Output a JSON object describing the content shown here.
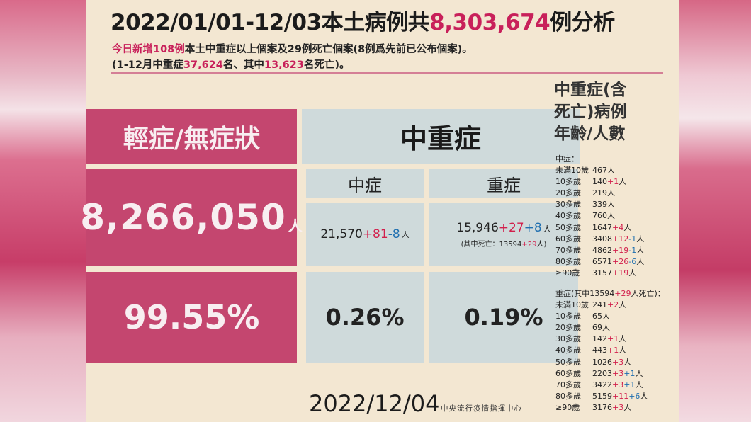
{
  "colors": {
    "pink": "#c4466f",
    "gray": "#cfdadb",
    "highlight": "#c8205a",
    "increase": "#d21f4c",
    "decrease": "#1f6fb0"
  },
  "title": {
    "prefix": "2022/01/01-12/03本土病例共",
    "count": "8,303,674",
    "suffix": "例分析"
  },
  "subtitle1": {
    "p1": "今日新增108例",
    "p2": "本土中重症以上個案及29例死亡個案(8例爲先前已公布個案)。"
  },
  "subtitle2": {
    "p1": "(1-12月中重症",
    "n1": "37,624",
    "p2": "名、其中",
    "n2": "13,623",
    "p3": "名死亡)。"
  },
  "table": {
    "mild_header": "輕症/無症狀",
    "severe_header": "中重症",
    "mild_count": "8,266,050",
    "mild_unit": "人",
    "mild_pct": "99.55%",
    "moderate_label": "中症",
    "severe_label": "重症",
    "moderate_base": "21,570",
    "moderate_plus": "+81",
    "moderate_minus": "-8",
    "moderate_unit": "人",
    "severe_base": "15,946",
    "severe_plus": "+27",
    "severe_plus2": "+8",
    "severe_unit": "人",
    "severe_note_pre": "(其中死亡：13594",
    "severe_note_plus": "+29",
    "severe_note_post": "人)",
    "moderate_pct": "0.26%",
    "severe_pct": "0.19%"
  },
  "side": {
    "title_l1": "中重症(含",
    "title_l2": "死亡)病例",
    "title_l3": "年齡/人數",
    "moderate_header": "中症：",
    "moderate_rows": [
      {
        "age": "未滿10歲",
        "base": "467人",
        "plus": "",
        "minus": "",
        "tail": ""
      },
      {
        "age": "10多歲",
        "base": "140",
        "plus": "+1",
        "minus": "",
        "tail": "人"
      },
      {
        "age": "20多歲",
        "base": "219人",
        "plus": "",
        "minus": "",
        "tail": ""
      },
      {
        "age": "30多歲",
        "base": "339人",
        "plus": "",
        "minus": "",
        "tail": ""
      },
      {
        "age": "40多歲",
        "base": "760人",
        "plus": "",
        "minus": "",
        "tail": ""
      },
      {
        "age": "50多歲",
        "base": "1647",
        "plus": "+4",
        "minus": "",
        "tail": "人"
      },
      {
        "age": "60多歲",
        "base": "3408",
        "plus": "+12",
        "minus": "-1",
        "tail": "人"
      },
      {
        "age": "70多歲",
        "base": "4862",
        "plus": "+19",
        "minus": "-1",
        "tail": "人"
      },
      {
        "age": "80多歲",
        "base": "6571",
        "plus": "+26",
        "minus": "-6",
        "tail": "人"
      },
      {
        "age": "≥90歲",
        "base": "3157",
        "plus": "+19",
        "minus": "",
        "tail": "人"
      }
    ],
    "severe_header_pre": "重症(其中13594",
    "severe_header_plus": "+29",
    "severe_header_post": "人死亡)：",
    "severe_rows": [
      {
        "age": "未滿10歲",
        "base": "241",
        "plus": "+2",
        "plus2": "",
        "tail": "人"
      },
      {
        "age": "10多歲",
        "base": "65人",
        "plus": "",
        "plus2": "",
        "tail": ""
      },
      {
        "age": "20多歲",
        "base": "69人",
        "plus": "",
        "plus2": "",
        "tail": ""
      },
      {
        "age": "30多歲",
        "base": "142",
        "plus": "+1",
        "plus2": "",
        "tail": "人"
      },
      {
        "age": "40多歲",
        "base": "443",
        "plus": "+1",
        "plus2": "",
        "tail": "人"
      },
      {
        "age": "50多歲",
        "base": "1026",
        "plus": "+3",
        "plus2": "",
        "tail": "人"
      },
      {
        "age": "60多歲",
        "base": "2203",
        "plus": "+3",
        "plus2": "+1",
        "tail": "人"
      },
      {
        "age": "70多歲",
        "base": "3422",
        "plus": "+3",
        "plus2": "+1",
        "tail": "人"
      },
      {
        "age": "80多歲",
        "base": "5159",
        "plus": "+11",
        "plus2": "+6",
        "tail": "人"
      },
      {
        "age": "≥90歲",
        "base": "3176",
        "plus": "+3",
        "plus2": "",
        "tail": "人"
      }
    ]
  },
  "footer": {
    "date": "2022/12/04",
    "agency": "中央流行疫情指揮中心"
  }
}
